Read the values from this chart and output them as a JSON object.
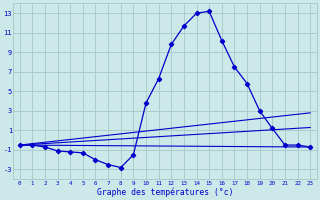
{
  "xlabel": "Graphe des températures (°c)",
  "bg_color": "#cce8e8",
  "grid_color": "#aacccc",
  "line_color": "#0000cc",
  "ylim": [
    -4,
    14
  ],
  "yticks": [
    -3,
    -1,
    1,
    3,
    5,
    7,
    9,
    11,
    13
  ],
  "xlim": [
    -0.5,
    23.5
  ],
  "xticks": [
    0,
    1,
    2,
    3,
    4,
    5,
    6,
    7,
    8,
    9,
    10,
    11,
    12,
    13,
    14,
    15,
    16,
    17,
    18,
    19,
    20,
    21,
    22,
    23
  ],
  "x_labels": [
    "0",
    "1",
    "2",
    "3",
    "4",
    "5",
    "6",
    "7",
    "8",
    "9",
    "10",
    "11",
    "12",
    "13",
    "14",
    "15",
    "16",
    "17",
    "18",
    "19",
    "20",
    "21",
    "22",
    "23"
  ],
  "temp_curve_x": [
    0,
    1,
    2,
    3,
    4,
    5,
    6,
    7,
    8,
    9,
    10,
    11,
    12,
    13,
    14,
    15,
    16,
    17,
    18,
    19,
    20,
    21,
    22,
    23
  ],
  "temp_curve_y": [
    -0.5,
    -0.5,
    -0.7,
    -1.1,
    -1.2,
    -1.3,
    -2.0,
    -2.5,
    -2.8,
    -1.5,
    3.8,
    6.3,
    9.8,
    11.7,
    13.0,
    13.2,
    10.2,
    7.5,
    5.8,
    3.0,
    1.2,
    -0.5,
    -0.5,
    -0.7
  ],
  "ref_line1_x": [
    0,
    23
  ],
  "ref_line1_y": [
    -0.5,
    -0.7
  ],
  "ref_line2_x": [
    0,
    23
  ],
  "ref_line2_y": [
    -0.5,
    2.8
  ],
  "ref_line3_x": [
    0,
    23
  ],
  "ref_line3_y": [
    -0.5,
    1.3
  ]
}
